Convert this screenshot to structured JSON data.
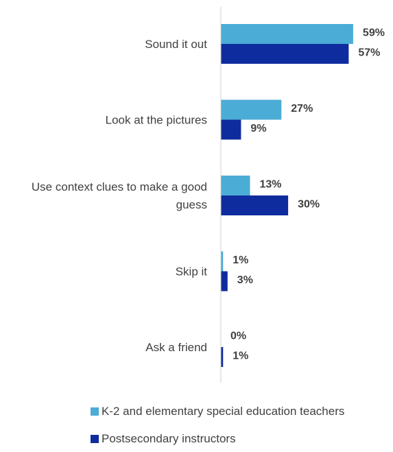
{
  "chart_data": {
    "type": "bar",
    "orientation": "horizontal",
    "categories": [
      "Sound it out",
      "Look at the pictures",
      "Use context clues to make a good guess",
      "Skip it",
      "Ask a friend"
    ],
    "category_label_lines": [
      [
        "Sound it out"
      ],
      [
        "Look at the pictures"
      ],
      [
        "Use context clues to make a good",
        "guess"
      ],
      [
        "Skip it"
      ],
      [
        "Ask a friend"
      ]
    ],
    "series": [
      {
        "name": "K-2 and elementary special education teachers",
        "color": "#4BACD6",
        "values": [
          59,
          27,
          13,
          1,
          0
        ],
        "labels": [
          "59%",
          "27%",
          "13%",
          "1%",
          "0%"
        ]
      },
      {
        "name": "Postsecondary instructors",
        "color": "#0F2C9E",
        "values": [
          57,
          9,
          30,
          3,
          1
        ],
        "labels": [
          "57%",
          "9%",
          "30%",
          "3%",
          "1%"
        ]
      }
    ],
    "xlim": [
      0,
      70
    ],
    "unit": "%",
    "grid": false,
    "legend_position": "bottom"
  }
}
